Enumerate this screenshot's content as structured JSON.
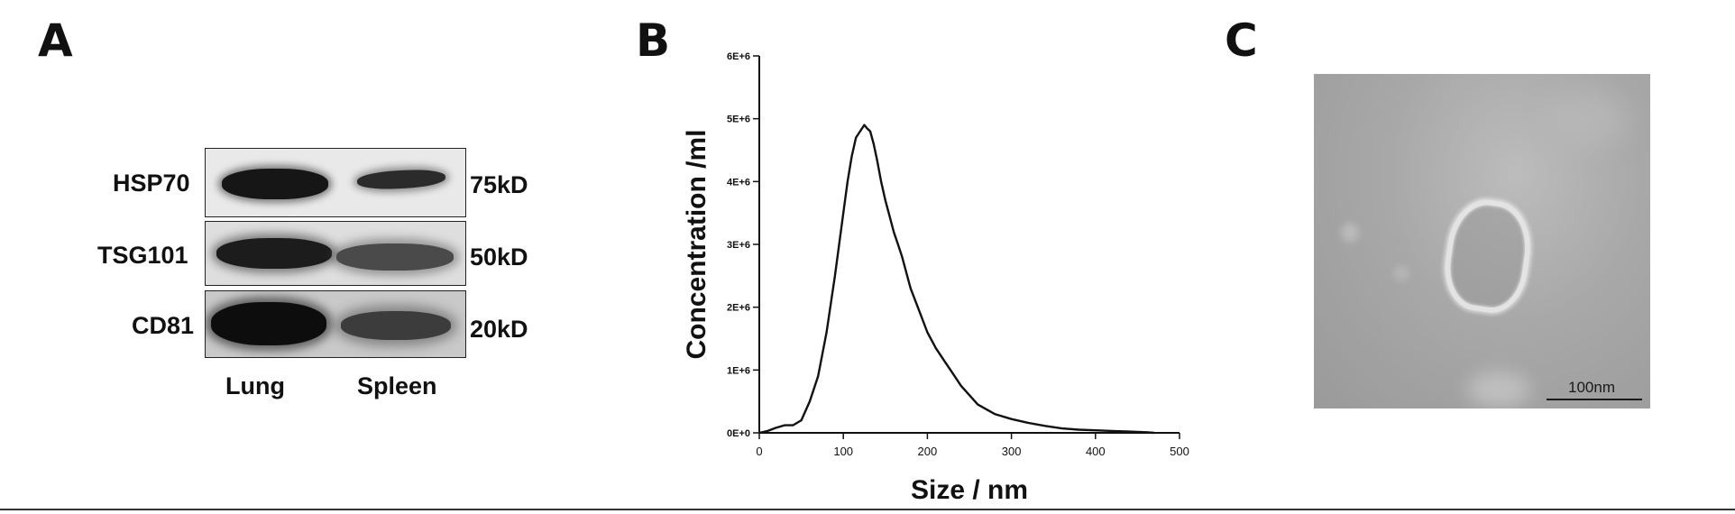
{
  "panels": {
    "a": {
      "letter": "A",
      "rows": [
        {
          "protein": "HSP70",
          "size": "75kD"
        },
        {
          "protein": "TSG101",
          "size": "50kD"
        },
        {
          "protein": "CD81",
          "size": "20kD"
        }
      ],
      "lanes": [
        "Lung",
        "Spleen"
      ]
    },
    "b": {
      "letter": "B"
    },
    "c": {
      "letter": "C",
      "scale_bar": "100nm"
    }
  },
  "chart_data": {
    "type": "line",
    "title": "",
    "xlabel": "Size / nm",
    "ylabel": "Concentration /ml",
    "xlim": [
      0,
      500
    ],
    "ylim": [
      0,
      6000000
    ],
    "x_ticks": [
      0,
      100,
      200,
      300,
      400,
      500
    ],
    "y_ticks": [
      0,
      1000000,
      2000000,
      3000000,
      4000000,
      5000000,
      6000000
    ],
    "y_tick_labels": [
      "0E+0",
      "1E+6",
      "2E+6",
      "3E+6",
      "4E+6",
      "5E+6",
      "6E+6"
    ],
    "grid": false,
    "series": [
      {
        "x": [
          0,
          10,
          20,
          30,
          40,
          50,
          60,
          70,
          80,
          90,
          100,
          105,
          110,
          115,
          120,
          125,
          128,
          132,
          136,
          140,
          145,
          150,
          155,
          160,
          165,
          170,
          175,
          180,
          190,
          200,
          210,
          220,
          230,
          240,
          250,
          260,
          280,
          300,
          320,
          340,
          360,
          380,
          400,
          420,
          440,
          460,
          470
        ],
        "y": [
          0,
          30000,
          80000,
          120000,
          120000,
          200000,
          500000,
          900000,
          1600000,
          2500000,
          3500000,
          4000000,
          4400000,
          4700000,
          4800000,
          4900000,
          4850000,
          4800000,
          4600000,
          4350000,
          4000000,
          3700000,
          3450000,
          3200000,
          3000000,
          2800000,
          2550000,
          2300000,
          1950000,
          1600000,
          1350000,
          1150000,
          950000,
          750000,
          600000,
          450000,
          300000,
          220000,
          160000,
          110000,
          70000,
          50000,
          40000,
          30000,
          20000,
          10000,
          0
        ]
      }
    ]
  }
}
